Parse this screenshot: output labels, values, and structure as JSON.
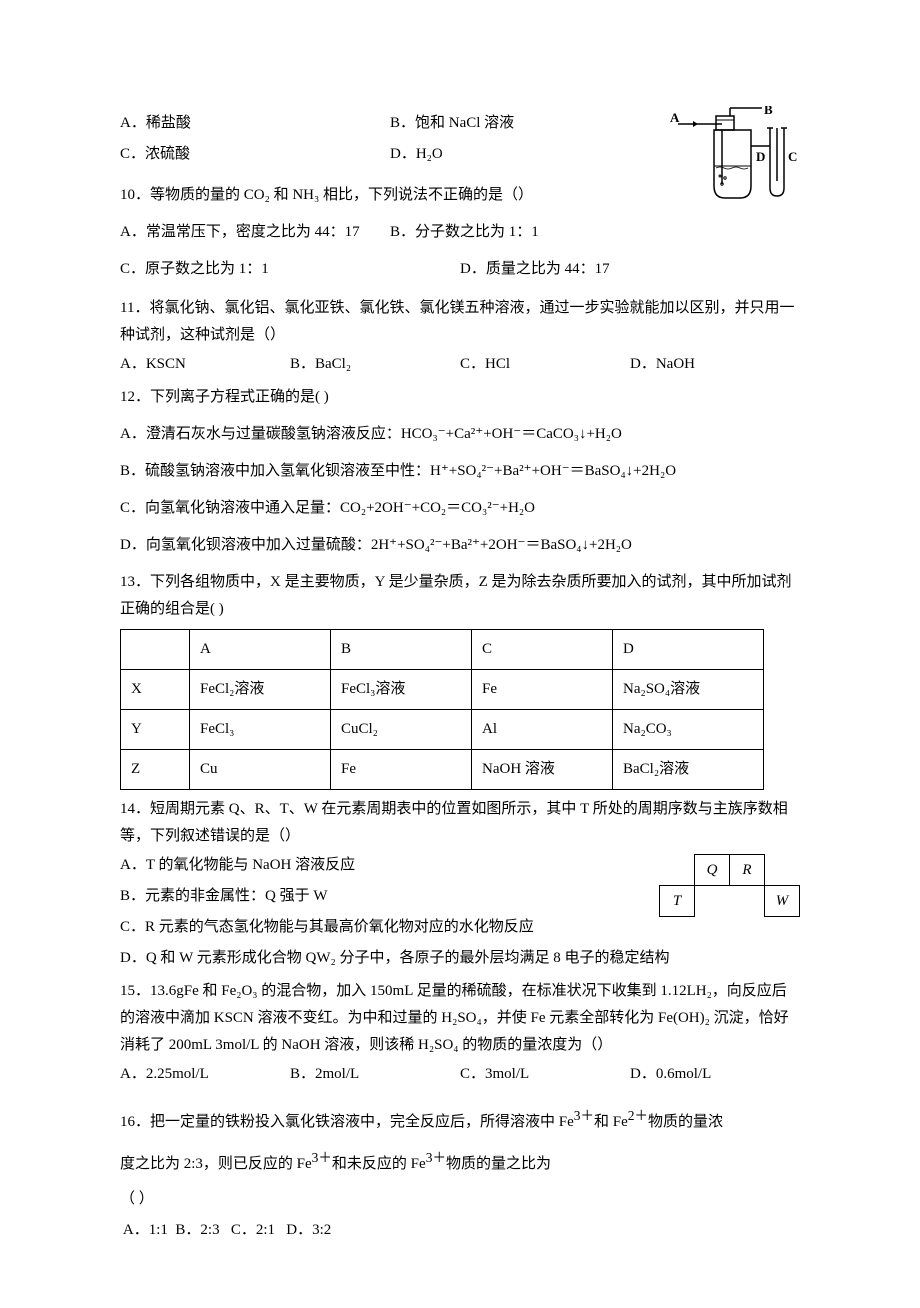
{
  "q9": {
    "a": "A．稀盐酸",
    "b": "B．饱和 NaCl 溶液",
    "c": "C．浓硫酸",
    "d": "D．H₂O",
    "apparatus_labels": {
      "a": "A",
      "b": "B",
      "c": "C",
      "d": "D"
    }
  },
  "q10": {
    "stem": "10．等物质的量的 CO₂ 和 NH₃ 相比，下列说法不正确的是（）",
    "a": "A．常温常压下，密度之比为 44：17",
    "b": "B．分子数之比为 1：1",
    "c": "C．原子数之比为 1：1",
    "d": "D．质量之比为 44：17"
  },
  "q11": {
    "stem": "11．将氯化钠、氯化铝、氯化亚铁、氯化铁、氯化镁五种溶液，通过一步实验就能加以区别，并只用一种试剂，这种试剂是（）",
    "a": "A．KSCN",
    "b": "B．BaCl₂",
    "c": "C．HCl",
    "d": "D．NaOH"
  },
  "q12": {
    "stem": "12．下列离子方程式正确的是(     )",
    "a": "A．澄清石灰水与过量碳酸氢钠溶液反应：HCO₃⁻+Ca²⁺+OH⁻＝CaCO₃↓+H₂O",
    "b": "B．硫酸氢钠溶液中加入氢氧化钡溶液至中性：H⁺+SO₄²⁻+Ba²⁺+OH⁻＝BaSO₄↓+2H₂O",
    "c": "C．向氢氧化钠溶液中通入足量：CO₂+2OH⁻+CO₂＝CO₃²⁻+H₂O",
    "d": "D．向氢氧化钡溶液中加入过量硫酸：2H⁺+SO₄²⁻+Ba²⁺+2OH⁻＝BaSO₄↓+2H₂O"
  },
  "q13": {
    "stem": "13．下列各组物质中，X 是主要物质，Y 是少量杂质，Z 是为除去杂质所要加入的试剂，其中所加试剂正确的组合是(     )",
    "table": {
      "header": [
        "",
        "A",
        "B",
        "C",
        "D"
      ],
      "rows": [
        [
          "X",
          "FeCl₂溶液",
          "FeCl₃溶液",
          "Fe",
          "Na₂SO₄溶液"
        ],
        [
          "Y",
          "FeCl₃",
          "CuCl₂",
          "Al",
          "Na₂CO₃"
        ],
        [
          "Z",
          "Cu",
          "Fe",
          "NaOH 溶液",
          "BaCl₂溶液"
        ]
      ],
      "col_widths": [
        "48px",
        "120px",
        "120px",
        "120px",
        "130px"
      ]
    }
  },
  "q14": {
    "stem": "14．短周期元素 Q、R、T、W 在元素周期表中的位置如图所示，其中 T 所处的周期序数与主族序数相等，下列叙述错误的是（）",
    "a": "A．T 的氧化物能与 NaOH 溶液反应",
    "b": "B．元素的非金属性：Q 强于 W",
    "c": "C．R 元素的气态氢化物能与其最高价氧化物对应的水化物反应",
    "d": "D．Q 和 W 元素形成化合物 QW₂ 分子中，各原子的最外层均满足 8 电子的稳定结构",
    "periodic": {
      "q": "Q",
      "r": "R",
      "t": "T",
      "w": "W"
    }
  },
  "q15": {
    "stem": "15．13.6gFe 和 Fe₂O₃ 的混合物，加入 150mL 足量的稀硫酸，在标准状况下收集到 1.12LH₂，向反应后的溶液中滴加 KSCN 溶液不变红。为中和过量的 H₂SO₄，并使 Fe 元素全部转化为 Fe(OH)₂ 沉淀，恰好消耗了 200mL 3mol/L 的 NaOH 溶液，则该稀 H₂SO₄ 的物质的量浓度为（）",
    "a": "A．2.25mol/L",
    "b": "B．2mol/L",
    "c": "C．3mol/L",
    "d": "D．0.6mol/L"
  },
  "q16": {
    "stem_1": "16．把一定量的铁粉投入氯化铁溶液中，完全反应后，所得溶液中 Fe",
    "stem_2": "和 Fe",
    "stem_3": "物质的量浓",
    "stem_4": "度之比为 2:3，则已反应的 Fe",
    "stem_5": "和未反应的 Fe",
    "stem_6": "物质的量之比为",
    "sup3": "3＋",
    "sup2": "2＋",
    "paren": "（       ）",
    "opts": " A．1:1  B．2:3   C．2:1   D．3:2"
  }
}
